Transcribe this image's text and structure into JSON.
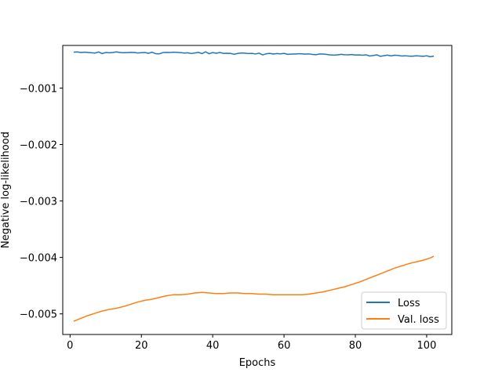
{
  "chart_data": {
    "type": "line",
    "xlabel": "Epochs",
    "ylabel": "Negative log-likelihood",
    "xlim": [
      -2.05,
      107.05
    ],
    "ylim": [
      -0.005365,
      -0.000245
    ],
    "xticks": [
      0,
      20,
      40,
      60,
      80,
      100
    ],
    "xtick_labels": [
      "0",
      "20",
      "40",
      "60",
      "80",
      "100"
    ],
    "yticks": [
      -0.005,
      -0.004,
      -0.003,
      -0.002,
      -0.001
    ],
    "ytick_labels": [
      "−0.005",
      "−0.004",
      "−0.003",
      "−0.002",
      "−0.001"
    ],
    "grid": false,
    "legend_position": "lower-right",
    "series": [
      {
        "name": "Loss",
        "color": "#1f77b4",
        "x": [
          1,
          2,
          3,
          4,
          5,
          6,
          7,
          8,
          9,
          10,
          11,
          12,
          13,
          14,
          15,
          16,
          17,
          18,
          19,
          20,
          21,
          22,
          23,
          24,
          25,
          26,
          27,
          28,
          29,
          30,
          31,
          32,
          33,
          34,
          35,
          36,
          37,
          38,
          39,
          40,
          41,
          42,
          43,
          44,
          45,
          46,
          47,
          48,
          49,
          50,
          51,
          52,
          53,
          54,
          55,
          56,
          57,
          58,
          59,
          60,
          61,
          62,
          63,
          64,
          65,
          66,
          67,
          68,
          69,
          70,
          71,
          72,
          73,
          74,
          75,
          76,
          77,
          78,
          79,
          80,
          81,
          82,
          83,
          84,
          85,
          86,
          87,
          88,
          89,
          90,
          91,
          92,
          93,
          94,
          95,
          96,
          97,
          98,
          99,
          100,
          101,
          102
        ],
        "y": [
          -0.000365,
          -0.00036,
          -0.00037,
          -0.000365,
          -0.00037,
          -0.000375,
          -0.00038,
          -0.00036,
          -0.00039,
          -0.00037,
          -0.000375,
          -0.00037,
          -0.00036,
          -0.00037,
          -0.000375,
          -0.000372,
          -0.000368,
          -0.00037,
          -0.000378,
          -0.000374,
          -0.00037,
          -0.000385,
          -0.000365,
          -0.00039,
          -0.000395,
          -0.000372,
          -0.000368,
          -0.00037,
          -0.000365,
          -0.000368,
          -0.000372,
          -0.00038,
          -0.000375,
          -0.000388,
          -0.000378,
          -0.000368,
          -0.00039,
          -0.000358,
          -0.000392,
          -0.000372,
          -0.000384,
          -0.00037,
          -0.000385,
          -0.000383,
          -0.000386,
          -0.000402,
          -0.000387,
          -0.000378,
          -0.000382,
          -0.000389,
          -0.000385,
          -0.000397,
          -0.000381,
          -0.000412,
          -0.000393,
          -0.000386,
          -0.000397,
          -0.000389,
          -0.000394,
          -0.000386,
          -0.000403,
          -0.000397,
          -0.000398,
          -0.000392,
          -0.000395,
          -0.000399,
          -0.000395,
          -0.000405,
          -0.000409,
          -0.000396,
          -0.000398,
          -0.000404,
          -0.000414,
          -0.000417,
          -0.000411,
          -0.000402,
          -0.000409,
          -0.000412,
          -0.000406,
          -0.000415,
          -0.000414,
          -0.000418,
          -0.000411,
          -0.000432,
          -0.000424,
          -0.000411,
          -0.000438,
          -0.000427,
          -0.000417,
          -0.000431,
          -0.000419,
          -0.000422,
          -0.000433,
          -0.000428,
          -0.000434,
          -0.000436,
          -0.000429,
          -0.000433,
          -0.000437,
          -0.000428,
          -0.000446,
          -0.000434
        ]
      },
      {
        "name": "Val. loss",
        "color": "#ff7f0e",
        "x": [
          1,
          3,
          5,
          7,
          9,
          11,
          13,
          15,
          17,
          19,
          21,
          23,
          25,
          27,
          29,
          31,
          33,
          35,
          37,
          39,
          41,
          43,
          45,
          47,
          49,
          51,
          53,
          55,
          57,
          59,
          61,
          63,
          65,
          67,
          69,
          71,
          73,
          75,
          77,
          79,
          81,
          83,
          85,
          87,
          89,
          91,
          93,
          95,
          97,
          99,
          101,
          102
        ],
        "y": [
          -0.00513,
          -0.00508,
          -0.00503,
          -0.00499,
          -0.00495,
          -0.00492,
          -0.0049,
          -0.00487,
          -0.00483,
          -0.00479,
          -0.00476,
          -0.00474,
          -0.00471,
          -0.00468,
          -0.00466,
          -0.00466,
          -0.00465,
          -0.00463,
          -0.00462,
          -0.00463,
          -0.00464,
          -0.00464,
          -0.00463,
          -0.00463,
          -0.00464,
          -0.00464,
          -0.00465,
          -0.00465,
          -0.00466,
          -0.00466,
          -0.00466,
          -0.00466,
          -0.00466,
          -0.00465,
          -0.00463,
          -0.00461,
          -0.00458,
          -0.00455,
          -0.00452,
          -0.00448,
          -0.00444,
          -0.00439,
          -0.00434,
          -0.00429,
          -0.00424,
          -0.00419,
          -0.00415,
          -0.00411,
          -0.00408,
          -0.00405,
          -0.00401,
          -0.00398
        ]
      }
    ]
  }
}
